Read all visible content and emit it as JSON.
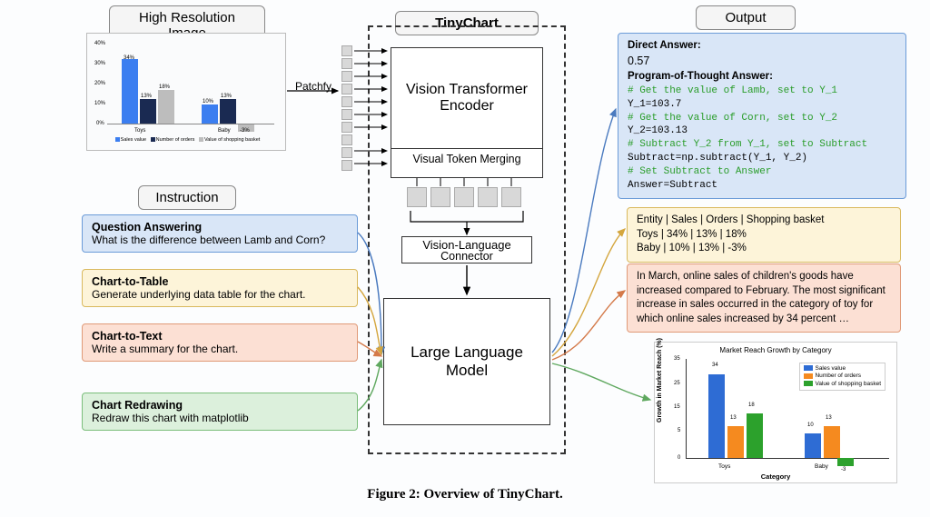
{
  "headers": {
    "hires": "High Resolution Image",
    "instruction": "Instruction",
    "tinychart": "TinyChart",
    "output": "Output"
  },
  "thumb_chart": {
    "type": "bar",
    "categories": [
      "Toys",
      "Baby"
    ],
    "series": [
      "Sales value",
      "Number of orders",
      "Value of shopping basket"
    ],
    "colors": [
      "#3b7ef0",
      "#1a2a52",
      "#bdbdbd"
    ],
    "values": [
      [
        34,
        13,
        18
      ],
      [
        10,
        13,
        -3
      ]
    ],
    "value_labels": [
      [
        "34%",
        "13%",
        "18%"
      ],
      [
        "10%",
        "13%",
        "-3%"
      ]
    ],
    "ylim": [
      -10,
      40
    ],
    "ytick_step": 10,
    "background": "#fafbfc"
  },
  "patchfy": "Patchfy",
  "arch": {
    "encoder_l1": "Vision Transformer",
    "encoder_l2": "Encoder",
    "vtm": "Visual Token Merging",
    "connector": "Vision-Language",
    "connector2": "Connector",
    "llm_l1": "Large Language",
    "llm_l2": "Model"
  },
  "instructions": [
    {
      "title": "Question Answering",
      "body": "What is the difference between Lamb and Corn?",
      "bg": "#d9e6f7",
      "border": "#6b9bd8"
    },
    {
      "title": "Chart-to-Table",
      "body": "Generate underlying data table for the chart.",
      "bg": "#fdf4d9",
      "border": "#d9b95e"
    },
    {
      "title": "Chart-to-Text",
      "body": "Write a summary for the chart.",
      "bg": "#fce0d4",
      "border": "#e09a78"
    },
    {
      "title": "Chart Redrawing",
      "body": "Redraw this chart with matplotlib",
      "bg": "#dcf0dc",
      "border": "#7bbe7b"
    }
  ],
  "output": {
    "direct": {
      "label_da": "Direct Answer:",
      "value": "0.57",
      "label_pot": "Program-of-Thought Answer:",
      "lines": [
        {
          "t": "# Get the value of Lamb, set to Y_1",
          "c": true
        },
        {
          "t": "Y_1=103.7",
          "c": false
        },
        {
          "t": "# Get the value of Corn, set to Y_2",
          "c": true
        },
        {
          "t": "Y_2=103.13",
          "c": false
        },
        {
          "t": "# Subtract Y_2 from Y_1, set to Subtract",
          "c": true
        },
        {
          "t": "Subtract=np.subtract(Y_1, Y_2)",
          "c": false
        },
        {
          "t": "# Set Subtract to Answer",
          "c": true
        },
        {
          "t": "Answer=Subtract",
          "c": false
        }
      ],
      "bg": "#d9e6f7",
      "border": "#6b9bd8"
    },
    "table": {
      "l1": "Entity | Sales | Orders | Shopping basket",
      "l2": "Toys | 34% | 13% | 18%",
      "l3": "Baby | 10% | 13% | -3%",
      "bg": "#fdf4d9",
      "border": "#d9b95e"
    },
    "text": {
      "body": "In March, online sales of children's goods have increased compared to February. The most significant increase in sales occurred in the category of toy for which online sales increased by 34 percent …",
      "bg": "#fce0d4",
      "border": "#e09a78"
    }
  },
  "output_chart": {
    "type": "bar",
    "title": "Market Reach Growth by Category",
    "xlabel": "Category",
    "ylabel": "Growth in Market Reach (%)",
    "categories": [
      "Toys",
      "Baby"
    ],
    "series": [
      "Sales value",
      "Number of orders",
      "Value of shopping basket"
    ],
    "colors": [
      "#2e6cd4",
      "#f58a1f",
      "#2ca12c"
    ],
    "values": [
      [
        34,
        13,
        18
      ],
      [
        10,
        13,
        -3
      ]
    ],
    "ylim": [
      -5,
      35
    ],
    "yticks": [
      0,
      5,
      10,
      15,
      20,
      25,
      30,
      35
    ],
    "title_fontsize": 8,
    "label_fontsize": 7,
    "background": "#ffffff"
  },
  "caption": "Figure 2: Overview of TinyChart.",
  "arrow_colors": {
    "qa": "#4a7abf",
    "table": "#d4a63e",
    "text": "#d47a4a",
    "redraw": "#5fa85f",
    "black": "#000000"
  }
}
